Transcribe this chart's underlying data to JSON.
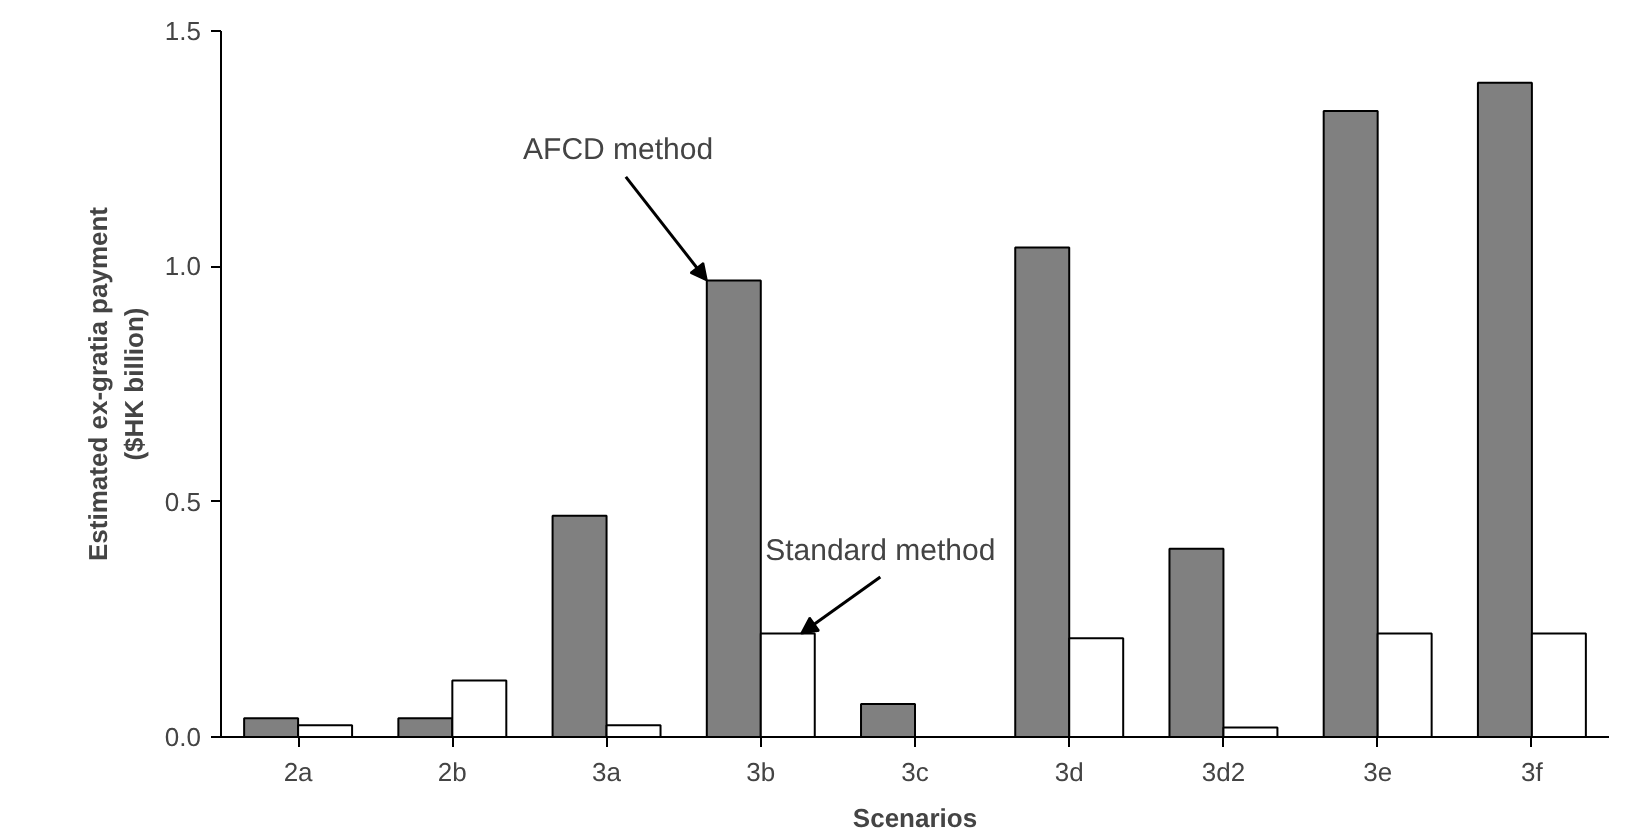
{
  "chart_data": {
    "type": "bar",
    "xlabel": "Scenarios",
    "ylabel": "Estimated ex-gratia payment\n($HK billion)",
    "categories": [
      "2a",
      "2b",
      "3a",
      "3b",
      "3c",
      "3d",
      "3d2",
      "3e",
      "3f"
    ],
    "series": [
      {
        "name": "AFCD method",
        "color": "#808080",
        "values": [
          0.04,
          0.04,
          0.47,
          0.97,
          0.07,
          1.04,
          0.4,
          1.33,
          1.39
        ]
      },
      {
        "name": "Standard method",
        "color": "#ffffff",
        "values": [
          0.025,
          0.12,
          0.025,
          0.22,
          null,
          0.21,
          0.02,
          0.22,
          0.22
        ]
      }
    ],
    "ylim": [
      0,
      1.5
    ],
    "yticks": [
      {
        "value": 0,
        "label": "0.0"
      },
      {
        "value": 0.5,
        "label": "0.5"
      },
      {
        "value": 1,
        "label": "1.0"
      },
      {
        "value": 1.5,
        "label": "1.5"
      }
    ],
    "grid": false
  }
}
